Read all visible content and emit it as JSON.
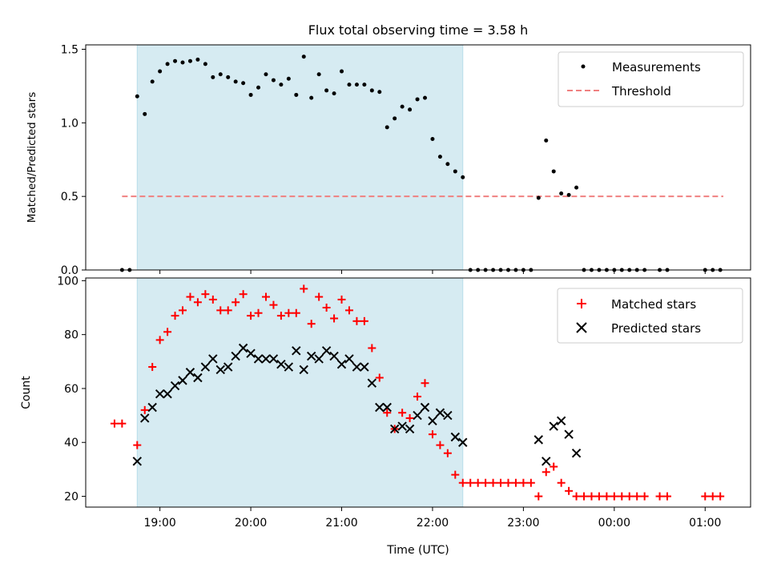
{
  "chart_data": [
    {
      "type": "scatter",
      "title": "Flux total observing time = 3.58 h",
      "ylabel": "Matched/Predicted stars",
      "xlabel": "",
      "ylim": [
        0,
        1.53
      ],
      "xlim": [
        "18:11",
        "01:30"
      ],
      "yticks": [
        "0.0",
        "0.5",
        "1.0",
        "1.5"
      ],
      "ytick_values": [
        0,
        0.5,
        1.0,
        1.5
      ],
      "observing_window": [
        "18:45",
        "22:20"
      ],
      "threshold": {
        "name": "Threshold",
        "value": 0.5,
        "x_range": [
          "18:35",
          "01:12"
        ],
        "color": "#f08080"
      },
      "legend": {
        "placement": "top-right",
        "entries": [
          "Measurements",
          "Threshold"
        ]
      },
      "series": [
        {
          "name": "Measurements",
          "color": "#000000",
          "points": [
            [
              "18:35",
              0
            ],
            [
              "18:40",
              0
            ],
            [
              "18:45",
              1.18
            ],
            [
              "18:50",
              1.06
            ],
            [
              "18:55",
              1.28
            ],
            [
              "19:00",
              1.35
            ],
            [
              "19:05",
              1.4
            ],
            [
              "19:10",
              1.42
            ],
            [
              "19:15",
              1.41
            ],
            [
              "19:20",
              1.42
            ],
            [
              "19:25",
              1.43
            ],
            [
              "19:30",
              1.4
            ],
            [
              "19:35",
              1.31
            ],
            [
              "19:40",
              1.33
            ],
            [
              "19:45",
              1.31
            ],
            [
              "19:50",
              1.28
            ],
            [
              "19:55",
              1.27
            ],
            [
              "20:00",
              1.19
            ],
            [
              "20:05",
              1.24
            ],
            [
              "20:10",
              1.33
            ],
            [
              "20:15",
              1.29
            ],
            [
              "20:20",
              1.26
            ],
            [
              "20:25",
              1.3
            ],
            [
              "20:30",
              1.19
            ],
            [
              "20:35",
              1.45
            ],
            [
              "20:40",
              1.17
            ],
            [
              "20:45",
              1.33
            ],
            [
              "20:50",
              1.22
            ],
            [
              "20:55",
              1.2
            ],
            [
              "21:00",
              1.35
            ],
            [
              "21:05",
              1.26
            ],
            [
              "21:10",
              1.26
            ],
            [
              "21:15",
              1.26
            ],
            [
              "21:20",
              1.22
            ],
            [
              "21:25",
              1.21
            ],
            [
              "21:30",
              0.97
            ],
            [
              "21:35",
              1.03
            ],
            [
              "21:40",
              1.11
            ],
            [
              "21:45",
              1.09
            ],
            [
              "21:50",
              1.16
            ],
            [
              "21:55",
              1.17
            ],
            [
              "22:00",
              0.89
            ],
            [
              "22:05",
              0.77
            ],
            [
              "22:10",
              0.72
            ],
            [
              "22:15",
              0.67
            ],
            [
              "22:20",
              0.63
            ],
            [
              "22:25",
              0
            ],
            [
              "22:30",
              0
            ],
            [
              "22:35",
              0
            ],
            [
              "22:40",
              0
            ],
            [
              "22:45",
              0
            ],
            [
              "22:50",
              0
            ],
            [
              "22:55",
              0
            ],
            [
              "23:00",
              0
            ],
            [
              "23:05",
              0
            ],
            [
              "23:10",
              0.49
            ],
            [
              "23:15",
              0.88
            ],
            [
              "23:20",
              0.67
            ],
            [
              "23:25",
              0.52
            ],
            [
              "23:30",
              0.51
            ],
            [
              "23:35",
              0.56
            ],
            [
              "23:40",
              0
            ],
            [
              "23:45",
              0
            ],
            [
              "23:50",
              0
            ],
            [
              "23:55",
              0
            ],
            [
              "00:00",
              0
            ],
            [
              "00:05",
              0
            ],
            [
              "00:10",
              0
            ],
            [
              "00:15",
              0
            ],
            [
              "00:20",
              0
            ],
            [
              "00:30",
              0
            ],
            [
              "00:35",
              0
            ],
            [
              "01:00",
              0
            ],
            [
              "01:05",
              0
            ],
            [
              "01:10",
              0
            ]
          ]
        }
      ]
    },
    {
      "type": "scatter",
      "title": "",
      "ylabel": "Count",
      "xlabel": "Time (UTC)",
      "ylim": [
        16,
        101
      ],
      "xlim": [
        "18:11",
        "01:30"
      ],
      "yticks": [
        "20",
        "40",
        "60",
        "80",
        "100"
      ],
      "ytick_values": [
        20,
        40,
        60,
        80,
        100
      ],
      "xticks": [
        "19:00",
        "20:00",
        "21:00",
        "22:00",
        "23:00",
        "00:00",
        "01:00"
      ],
      "observing_window": [
        "18:45",
        "22:20"
      ],
      "legend": {
        "placement": "top-right",
        "entries": [
          "Matched stars",
          "Predicted stars"
        ]
      },
      "series": [
        {
          "name": "Matched stars",
          "marker": "plus",
          "color": "#ff0000",
          "points": [
            [
              "18:30",
              47
            ],
            [
              "18:35",
              47
            ],
            [
              "18:45",
              39
            ],
            [
              "18:50",
              52
            ],
            [
              "18:55",
              68
            ],
            [
              "19:00",
              78
            ],
            [
              "19:05",
              81
            ],
            [
              "19:10",
              87
            ],
            [
              "19:15",
              89
            ],
            [
              "19:20",
              94
            ],
            [
              "19:25",
              92
            ],
            [
              "19:30",
              95
            ],
            [
              "19:35",
              93
            ],
            [
              "19:40",
              89
            ],
            [
              "19:45",
              89
            ],
            [
              "19:50",
              92
            ],
            [
              "19:55",
              95
            ],
            [
              "20:00",
              87
            ],
            [
              "20:05",
              88
            ],
            [
              "20:10",
              94
            ],
            [
              "20:15",
              91
            ],
            [
              "20:20",
              87
            ],
            [
              "20:25",
              88
            ],
            [
              "20:30",
              88
            ],
            [
              "20:35",
              97
            ],
            [
              "20:40",
              84
            ],
            [
              "20:45",
              94
            ],
            [
              "20:50",
              90
            ],
            [
              "20:55",
              86
            ],
            [
              "21:00",
              93
            ],
            [
              "21:05",
              89
            ],
            [
              "21:10",
              85
            ],
            [
              "21:15",
              85
            ],
            [
              "21:20",
              75
            ],
            [
              "21:25",
              64
            ],
            [
              "21:30",
              51
            ],
            [
              "21:35",
              45
            ],
            [
              "21:40",
              51
            ],
            [
              "21:45",
              49
            ],
            [
              "21:50",
              57
            ],
            [
              "21:55",
              62
            ],
            [
              "22:00",
              43
            ],
            [
              "22:05",
              39
            ],
            [
              "22:10",
              36
            ],
            [
              "22:15",
              28
            ],
            [
              "22:20",
              25
            ],
            [
              "22:25",
              25
            ],
            [
              "22:30",
              25
            ],
            [
              "22:35",
              25
            ],
            [
              "22:40",
              25
            ],
            [
              "22:45",
              25
            ],
            [
              "22:50",
              25
            ],
            [
              "22:55",
              25
            ],
            [
              "23:00",
              25
            ],
            [
              "23:05",
              25
            ],
            [
              "23:10",
              20
            ],
            [
              "23:15",
              29
            ],
            [
              "23:20",
              31
            ],
            [
              "23:25",
              25
            ],
            [
              "23:30",
              22
            ],
            [
              "23:35",
              20
            ],
            [
              "23:40",
              20
            ],
            [
              "23:45",
              20
            ],
            [
              "23:50",
              20
            ],
            [
              "23:55",
              20
            ],
            [
              "00:00",
              20
            ],
            [
              "00:05",
              20
            ],
            [
              "00:10",
              20
            ],
            [
              "00:15",
              20
            ],
            [
              "00:20",
              20
            ],
            [
              "00:30",
              20
            ],
            [
              "00:35",
              20
            ],
            [
              "01:00",
              20
            ],
            [
              "01:05",
              20
            ],
            [
              "01:10",
              20
            ]
          ]
        },
        {
          "name": "Predicted stars",
          "marker": "x",
          "color": "#000000",
          "points": [
            [
              "18:45",
              33
            ],
            [
              "18:50",
              49
            ],
            [
              "18:55",
              53
            ],
            [
              "19:00",
              58
            ],
            [
              "19:05",
              58
            ],
            [
              "19:10",
              61
            ],
            [
              "19:15",
              63
            ],
            [
              "19:20",
              66
            ],
            [
              "19:25",
              64
            ],
            [
              "19:30",
              68
            ],
            [
              "19:35",
              71
            ],
            [
              "19:40",
              67
            ],
            [
              "19:45",
              68
            ],
            [
              "19:50",
              72
            ],
            [
              "19:55",
              75
            ],
            [
              "20:00",
              73
            ],
            [
              "20:05",
              71
            ],
            [
              "20:10",
              71
            ],
            [
              "20:15",
              71
            ],
            [
              "20:20",
              69
            ],
            [
              "20:25",
              68
            ],
            [
              "20:30",
              74
            ],
            [
              "20:35",
              67
            ],
            [
              "20:40",
              72
            ],
            [
              "20:45",
              71
            ],
            [
              "20:50",
              74
            ],
            [
              "20:55",
              72
            ],
            [
              "21:00",
              69
            ],
            [
              "21:05",
              71
            ],
            [
              "21:10",
              68
            ],
            [
              "21:15",
              68
            ],
            [
              "21:20",
              62
            ],
            [
              "21:25",
              53
            ],
            [
              "21:30",
              53
            ],
            [
              "21:35",
              45
            ],
            [
              "21:40",
              46
            ],
            [
              "21:45",
              45
            ],
            [
              "21:50",
              50
            ],
            [
              "21:55",
              53
            ],
            [
              "22:00",
              48
            ],
            [
              "22:05",
              51
            ],
            [
              "22:10",
              50
            ],
            [
              "22:15",
              42
            ],
            [
              "22:20",
              40
            ],
            [
              "23:10",
              41
            ],
            [
              "23:15",
              33
            ],
            [
              "23:20",
              46
            ],
            [
              "23:25",
              48
            ],
            [
              "23:30",
              43
            ],
            [
              "23:35",
              36
            ]
          ]
        }
      ]
    }
  ]
}
